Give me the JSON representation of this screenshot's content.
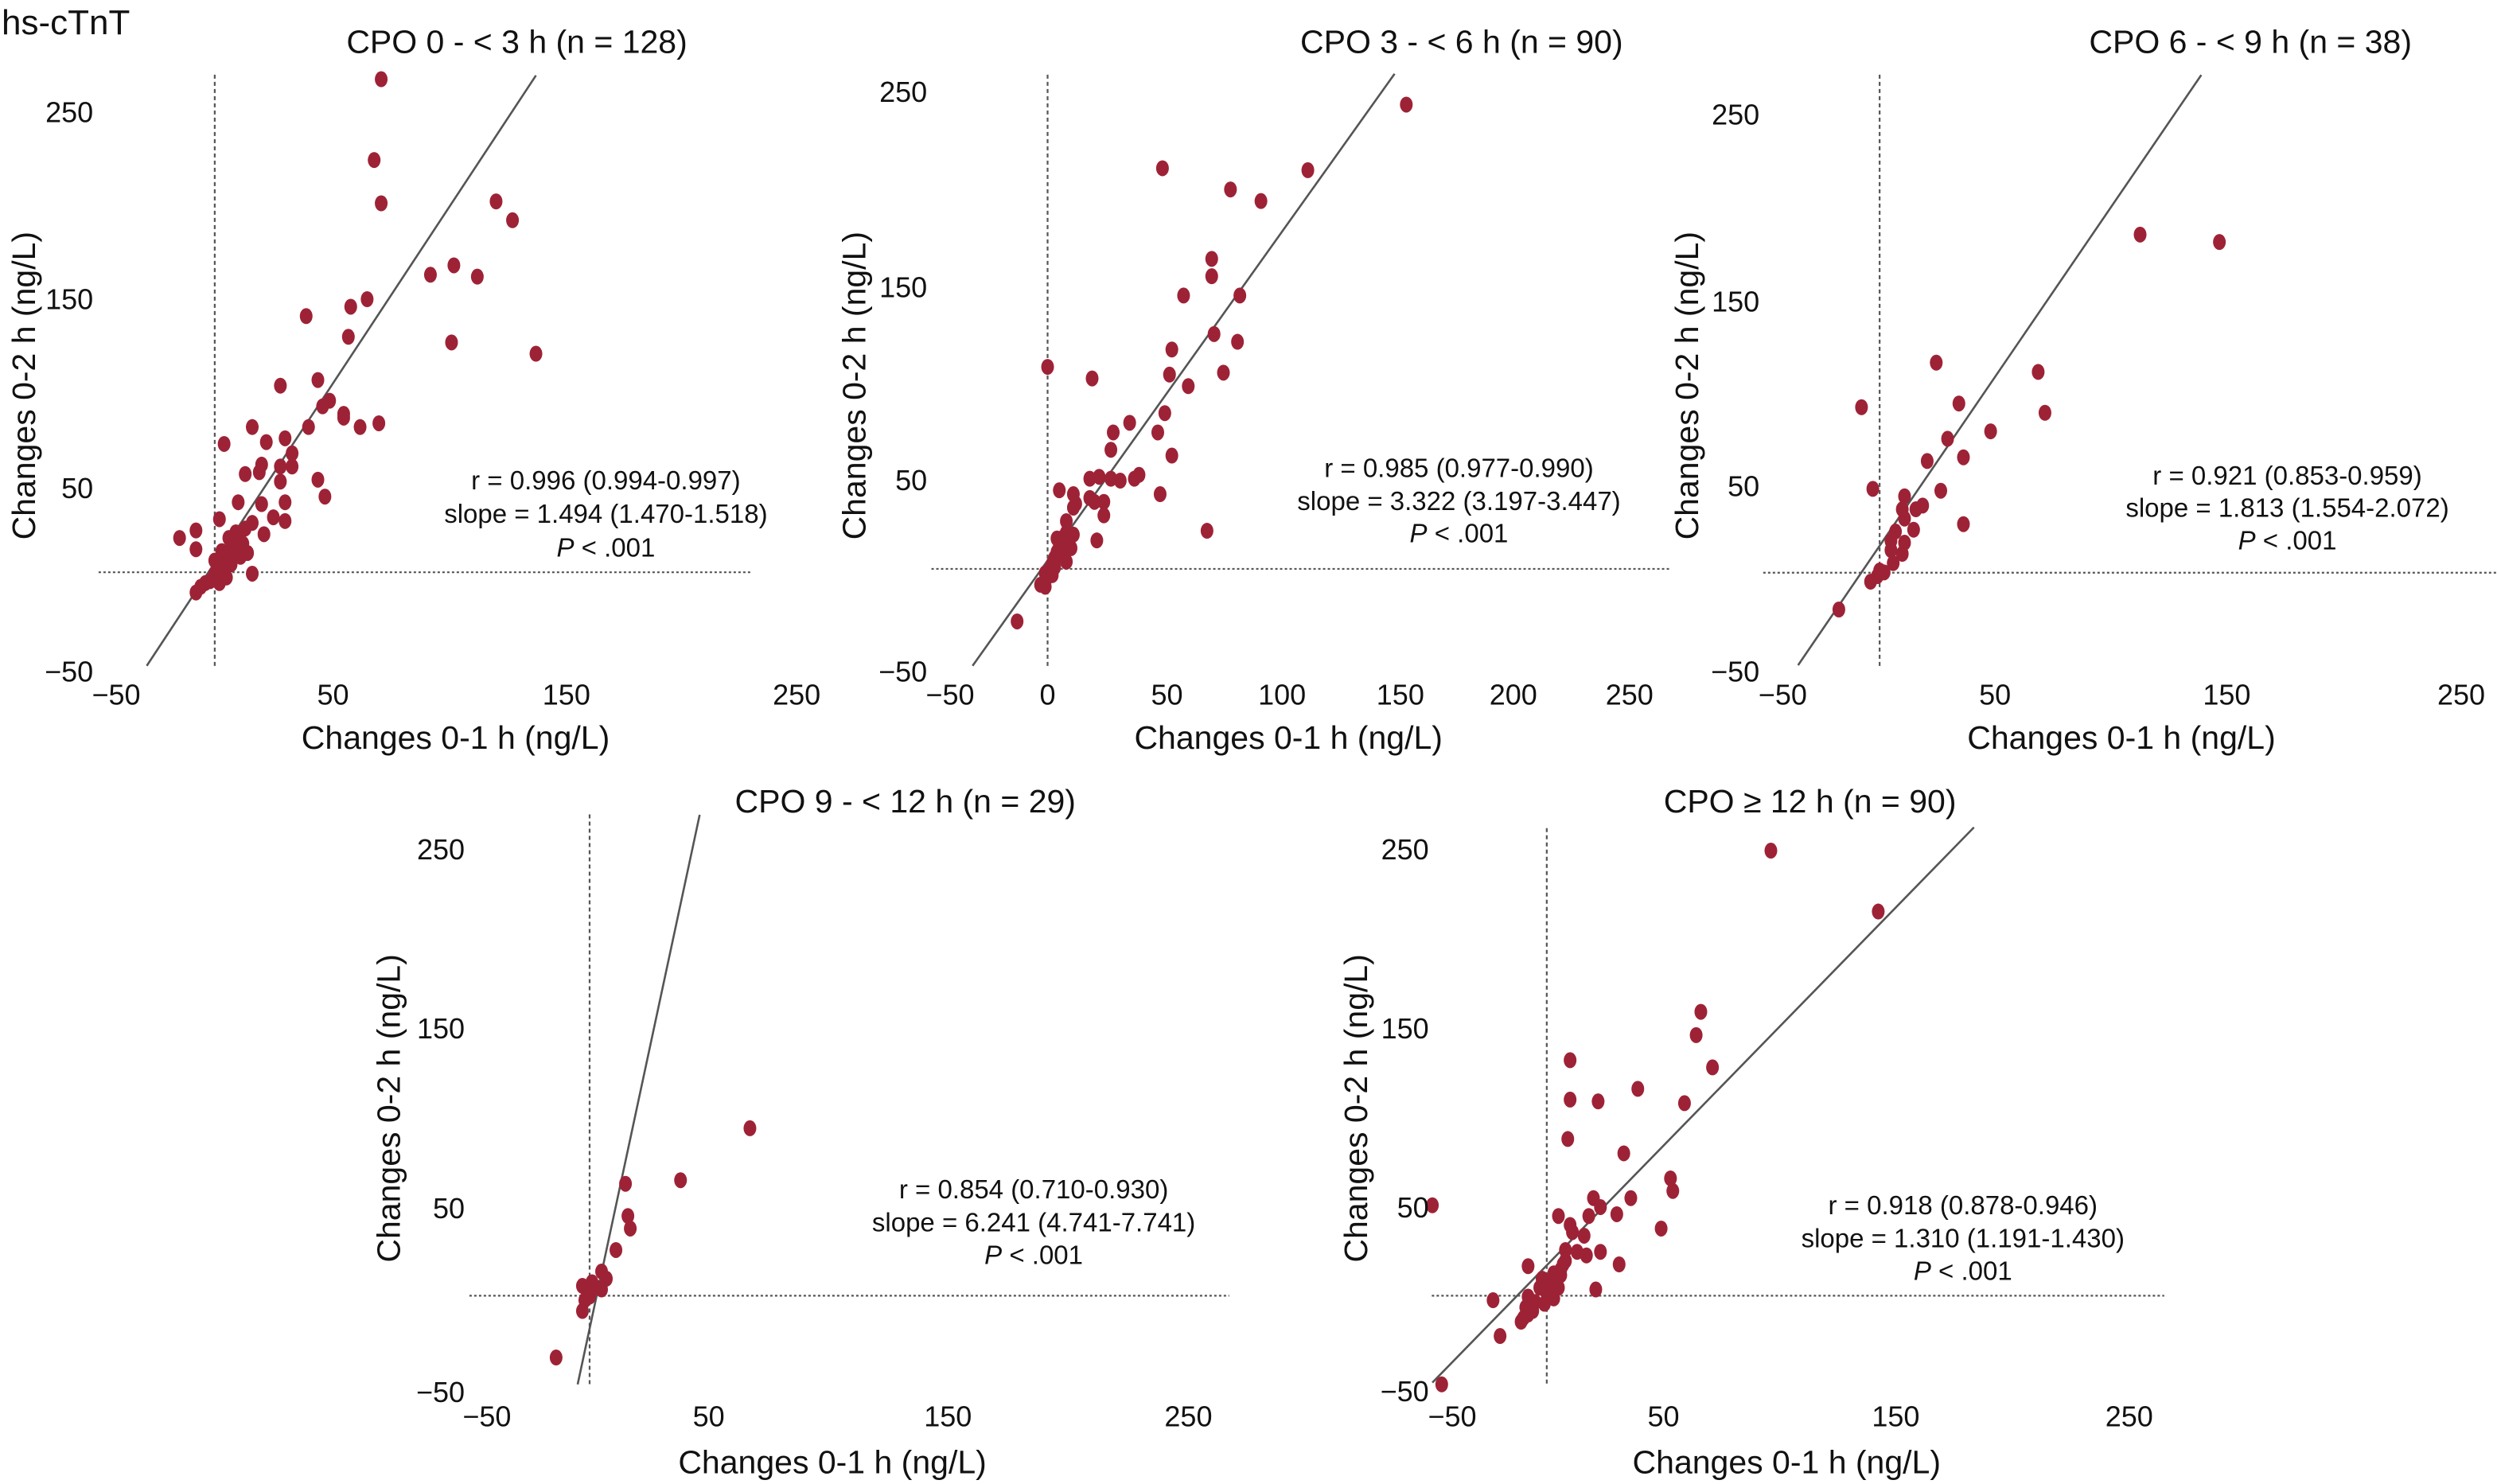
{
  "figure_label": "hs-cTnT",
  "colors": {
    "point": "#9e2236",
    "fit_line": "#555555",
    "reference_line": "#555555"
  },
  "chart_data": [
    {
      "type": "scatter",
      "title": "CPO 0 - < 3 h (n = 128)",
      "xlabel": "Changes 0-1 h (ng/L)",
      "ylabel": "Changes 0-2 h (ng/L)",
      "xticks": [
        "−50",
        "50",
        "150",
        "250"
      ],
      "yticks": [
        "250",
        "150",
        "50",
        "−50"
      ],
      "xlim": [
        -50,
        250
      ],
      "ylim": [
        -50,
        250
      ],
      "stats": {
        "r": "r = 0.996 (0.994-0.997)",
        "slope": "slope = 1.494 (1.470-1.518)",
        "p_label": "P",
        "p_text": " < .001"
      },
      "fit_line": [
        [
          -29,
          -49
        ],
        [
          137,
          265
        ]
      ],
      "points": [
        [
          71,
          263
        ],
        [
          68,
          220
        ],
        [
          71,
          197
        ],
        [
          120,
          198
        ],
        [
          127,
          188
        ],
        [
          102,
          164
        ],
        [
          92,
          159
        ],
        [
          112,
          158
        ],
        [
          101,
          123
        ],
        [
          137,
          117
        ],
        [
          39,
          137
        ],
        [
          58,
          142
        ],
        [
          65,
          146
        ],
        [
          57,
          126
        ],
        [
          28,
          100
        ],
        [
          44,
          103
        ],
        [
          46,
          89
        ],
        [
          49,
          92
        ],
        [
          55,
          85
        ],
        [
          55,
          83
        ],
        [
          62,
          78
        ],
        [
          70,
          80
        ],
        [
          16,
          78
        ],
        [
          4,
          69
        ],
        [
          22,
          70
        ],
        [
          30,
          72
        ],
        [
          33,
          64
        ],
        [
          40,
          78
        ],
        [
          13,
          53
        ],
        [
          19,
          54
        ],
        [
          20,
          58
        ],
        [
          28,
          57
        ],
        [
          33,
          57
        ],
        [
          28,
          49
        ],
        [
          44,
          50
        ],
        [
          47,
          41
        ],
        [
          10,
          38
        ],
        [
          20,
          37
        ],
        [
          30,
          38
        ],
        [
          16,
          27
        ],
        [
          25,
          30
        ],
        [
          30,
          28
        ],
        [
          21,
          21
        ],
        [
          2,
          29
        ],
        [
          -15,
          19
        ],
        [
          -8,
          23
        ],
        [
          -8,
          13
        ],
        [
          16,
          0
        ],
        [
          -8,
          -10
        ],
        [
          0,
          0
        ],
        [
          2,
          3
        ],
        [
          3,
          6
        ],
        [
          5,
          8
        ],
        [
          6,
          11
        ],
        [
          8,
          14
        ],
        [
          9,
          17
        ],
        [
          10,
          20
        ],
        [
          4,
          2
        ],
        [
          1,
          -3
        ],
        [
          -2,
          -4
        ],
        [
          -4,
          -5
        ],
        [
          -6,
          -7
        ],
        [
          7,
          5
        ],
        [
          11,
          9
        ],
        [
          12,
          16
        ],
        [
          3,
          12
        ],
        [
          6,
          19
        ],
        [
          9,
          22
        ],
        [
          13,
          24
        ],
        [
          2,
          -5
        ],
        [
          5,
          -2
        ],
        [
          14,
          11
        ],
        [
          0,
          7
        ]
      ]
    },
    {
      "type": "scatter",
      "title": "CPO 3 - < 6 h (n = 90)",
      "xlabel": "Changes 0-1 h (ng/L)",
      "ylabel": "Changes 0-2 h (ng/L)",
      "xticks": [
        "−50",
        "0",
        "50",
        "100",
        "150",
        "200",
        "250"
      ],
      "yticks": [
        "250",
        "150",
        "50",
        "−50"
      ],
      "xlim": [
        -50,
        250
      ],
      "ylim": [
        -50,
        250
      ],
      "stats": {
        "r": "r = 0.985 (0.977-0.990)",
        "slope": "slope = 3.322 (3.197-3.447)",
        "p_label": "P",
        "p_text": " < .001"
      },
      "fit_line": [
        [
          -32,
          -49
        ],
        [
          148,
          258
        ]
      ],
      "points": [
        [
          153,
          242
        ],
        [
          49,
          209
        ],
        [
          111,
          208
        ],
        [
          78,
          198
        ],
        [
          91,
          192
        ],
        [
          70,
          162
        ],
        [
          70,
          153
        ],
        [
          58,
          143
        ],
        [
          82,
          143
        ],
        [
          71,
          123
        ],
        [
          81,
          119
        ],
        [
          53,
          115
        ],
        [
          52,
          102
        ],
        [
          75,
          103
        ],
        [
          60,
          96
        ],
        [
          0,
          106
        ],
        [
          19,
          100
        ],
        [
          50,
          82
        ],
        [
          35,
          77
        ],
        [
          28,
          72
        ],
        [
          47,
          72
        ],
        [
          27,
          63
        ],
        [
          53,
          60
        ],
        [
          18,
          48
        ],
        [
          22,
          49
        ],
        [
          27,
          48
        ],
        [
          31,
          47
        ],
        [
          37,
          48
        ],
        [
          39,
          50
        ],
        [
          48,
          40
        ],
        [
          5,
          42
        ],
        [
          11,
          40
        ],
        [
          12,
          35
        ],
        [
          18,
          38
        ],
        [
          20,
          36
        ],
        [
          24,
          36
        ],
        [
          24,
          29
        ],
        [
          11,
          33
        ],
        [
          8,
          26
        ],
        [
          21,
          16
        ],
        [
          68,
          21
        ],
        [
          -13,
          -26
        ],
        [
          -3,
          -7
        ],
        [
          -1,
          -8
        ],
        [
          1,
          1
        ],
        [
          2,
          4
        ],
        [
          3,
          7
        ],
        [
          4,
          10
        ],
        [
          5,
          13
        ],
        [
          6,
          16
        ],
        [
          7,
          18
        ],
        [
          8,
          20
        ],
        [
          9,
          15
        ],
        [
          10,
          12
        ],
        [
          3,
          2
        ],
        [
          2,
          -2
        ],
        [
          0,
          -3
        ],
        [
          6,
          8
        ],
        [
          8,
          5
        ],
        [
          11,
          19
        ],
        [
          4,
          17
        ],
        [
          -1,
          -1
        ]
      ]
    },
    {
      "type": "scatter",
      "title": "CPO 6 - < 9 h (n = 38)",
      "xlabel": "Changes 0-1 h (ng/L)",
      "ylabel": "Changes 0-2 h (ng/L)",
      "xticks": [
        "−50",
        "50",
        "150",
        "250"
      ],
      "yticks": [
        "250",
        "150",
        "50",
        "−50"
      ],
      "xlim": [
        -50,
        250
      ],
      "ylim": [
        -50,
        250
      ],
      "stats": {
        "r": "r = 0.921 (0.853-0.959)",
        "slope": "slope = 1.813 (1.554-2.072)",
        "p_label": "P",
        "p_text": " < .001"
      },
      "fit_line": [
        [
          -36,
          -48
        ],
        [
          142,
          270
        ]
      ],
      "points": [
        [
          115,
          184
        ],
        [
          150,
          180
        ],
        [
          25,
          115
        ],
        [
          70,
          110
        ],
        [
          35,
          93
        ],
        [
          73,
          88
        ],
        [
          -8,
          91
        ],
        [
          49,
          78
        ],
        [
          30,
          74
        ],
        [
          21,
          62
        ],
        [
          37,
          64
        ],
        [
          -3,
          47
        ],
        [
          27,
          46
        ],
        [
          11,
          43
        ],
        [
          19,
          38
        ],
        [
          10,
          36
        ],
        [
          16,
          36
        ],
        [
          11,
          31
        ],
        [
          37,
          28
        ],
        [
          7,
          24
        ],
        [
          15,
          25
        ],
        [
          5,
          19
        ],
        [
          11,
          18
        ],
        [
          5,
          14
        ],
        [
          10,
          12
        ],
        [
          6,
          7
        ],
        [
          0,
          3
        ],
        [
          2,
          2
        ],
        [
          -1,
          0
        ],
        [
          -4,
          -3
        ],
        [
          -18,
          -18
        ]
      ]
    },
    {
      "type": "scatter",
      "title": "CPO 9 - < 12 h (n = 29)",
      "xlabel": "Changes 0-1 h (ng/L)",
      "ylabel": "Changes 0-2 h (ng/L)",
      "xticks": [
        "−50",
        "50",
        "150",
        "250"
      ],
      "yticks": [
        "250",
        "150",
        "50",
        "−50"
      ],
      "xlim": [
        -50,
        250
      ],
      "ylim": [
        -50,
        250
      ],
      "stats": {
        "r": "r = 0.854 (0.710-0.930)",
        "slope": "slope = 6.241 (4.741-7.741)",
        "p_label": "P",
        "p_text": " < .001"
      },
      "fit_line": [
        [
          -5,
          -49
        ],
        [
          46,
          269
        ]
      ],
      "points": [
        [
          67,
          94
        ],
        [
          38,
          65
        ],
        [
          15,
          63
        ],
        [
          16,
          45
        ],
        [
          17,
          38
        ],
        [
          11,
          26
        ],
        [
          5,
          14
        ],
        [
          7,
          10
        ],
        [
          -3,
          6
        ],
        [
          1,
          8
        ],
        [
          3,
          5
        ],
        [
          5,
          4
        ],
        [
          -1,
          3
        ],
        [
          -2,
          -2
        ],
        [
          0,
          0
        ],
        [
          -3,
          -8
        ],
        [
          -14,
          -34
        ]
      ]
    },
    {
      "type": "scatter",
      "title": "CPO ≥ 12 h (n = 90)",
      "xlabel": "Changes 0-1 h (ng/L)",
      "ylabel": "Changes 0-2 h (ng/L)",
      "xticks": [
        "−50",
        "50",
        "150",
        "250"
      ],
      "yticks": [
        "250",
        "150",
        "50",
        "−50"
      ],
      "xlim": [
        -50,
        250
      ],
      "ylim": [
        -50,
        250
      ],
      "stats": {
        "r": "r = 0.918 (0.878-0.946)",
        "slope": "slope = 1.310 (1.191-1.430)",
        "p_label": "P",
        "p_text": " < .001"
      },
      "fit_line": [
        [
          -49,
          -48
        ],
        [
          183,
          262
        ]
      ],
      "points": [
        [
          96,
          249
        ],
        [
          142,
          215
        ],
        [
          66,
          159
        ],
        [
          64,
          146
        ],
        [
          71,
          128
        ],
        [
          10,
          132
        ],
        [
          39,
          116
        ],
        [
          10,
          110
        ],
        [
          22,
          109
        ],
        [
          59,
          108
        ],
        [
          9,
          88
        ],
        [
          33,
          80
        ],
        [
          53,
          66
        ],
        [
          54,
          59
        ],
        [
          36,
          55
        ],
        [
          20,
          55
        ],
        [
          23,
          50
        ],
        [
          -49,
          51
        ],
        [
          5,
          45
        ],
        [
          18,
          45
        ],
        [
          30,
          46
        ],
        [
          49,
          38
        ],
        [
          10,
          40
        ],
        [
          11,
          36
        ],
        [
          16,
          34
        ],
        [
          13,
          25
        ],
        [
          17,
          23
        ],
        [
          23,
          25
        ],
        [
          8,
          26
        ],
        [
          31,
          18
        ],
        [
          -8,
          17
        ],
        [
          7,
          18
        ],
        [
          3,
          13
        ],
        [
          -2,
          10
        ],
        [
          21,
          4
        ],
        [
          5,
          5
        ],
        [
          1,
          3
        ],
        [
          -8,
          0
        ],
        [
          -23,
          -2
        ],
        [
          -6,
          -8
        ],
        [
          -8,
          -10
        ],
        [
          -11,
          -14
        ],
        [
          -20,
          -22
        ],
        [
          -45,
          -49
        ],
        [
          0,
          2
        ],
        [
          2,
          6
        ],
        [
          4,
          9
        ],
        [
          6,
          12
        ],
        [
          -3,
          5
        ],
        [
          -5,
          -3
        ],
        [
          -9,
          -6
        ],
        [
          -10,
          -12
        ],
        [
          3,
          -1
        ],
        [
          6,
          15
        ],
        [
          8,
          20
        ],
        [
          1,
          7
        ],
        [
          -1,
          -4
        ]
      ]
    }
  ]
}
